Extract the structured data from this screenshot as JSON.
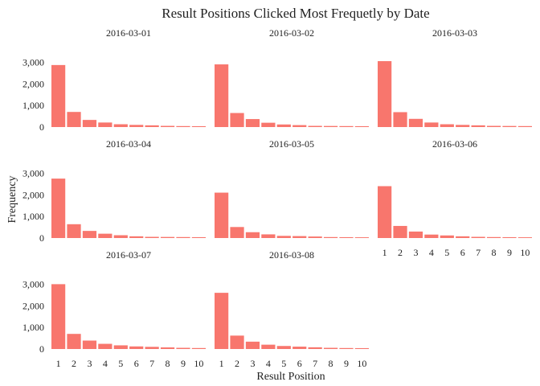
{
  "chart_data": {
    "type": "bar",
    "title": "Result Positions Clicked Most Frequetly by Date",
    "xlabel": "Result Position",
    "ylabel": "Frequency",
    "bar_color": "#F8766D",
    "background": "#FFFFFF",
    "categories": [
      "1",
      "2",
      "3",
      "4",
      "5",
      "6",
      "7",
      "8",
      "9",
      "10"
    ],
    "y_ticks": [
      0,
      1000,
      2000,
      3000
    ],
    "y_tick_labels": [
      "0",
      "1,000",
      "2,000",
      "3,000"
    ],
    "ylim": [
      0,
      3200
    ],
    "panels": [
      {
        "date": "2016-03-01",
        "values": [
          2870,
          700,
          330,
          210,
          130,
          100,
          80,
          55,
          45,
          40
        ]
      },
      {
        "date": "2016-03-02",
        "values": [
          2900,
          650,
          370,
          200,
          120,
          90,
          55,
          50,
          45,
          40
        ]
      },
      {
        "date": "2016-03-03",
        "values": [
          3050,
          690,
          380,
          210,
          130,
          100,
          80,
          55,
          50,
          45
        ]
      },
      {
        "date": "2016-03-04",
        "values": [
          2750,
          640,
          330,
          200,
          130,
          80,
          55,
          50,
          45,
          40
        ]
      },
      {
        "date": "2016-03-05",
        "values": [
          2100,
          510,
          270,
          170,
          100,
          90,
          70,
          45,
          40,
          35
        ]
      },
      {
        "date": "2016-03-06",
        "values": [
          2400,
          560,
          300,
          160,
          120,
          80,
          55,
          45,
          40,
          35
        ]
      },
      {
        "date": "2016-03-07",
        "values": [
          3000,
          700,
          390,
          240,
          170,
          120,
          100,
          75,
          55,
          45
        ]
      },
      {
        "date": "2016-03-08",
        "values": [
          2600,
          620,
          340,
          200,
          140,
          110,
          80,
          55,
          45,
          40
        ]
      }
    ]
  }
}
